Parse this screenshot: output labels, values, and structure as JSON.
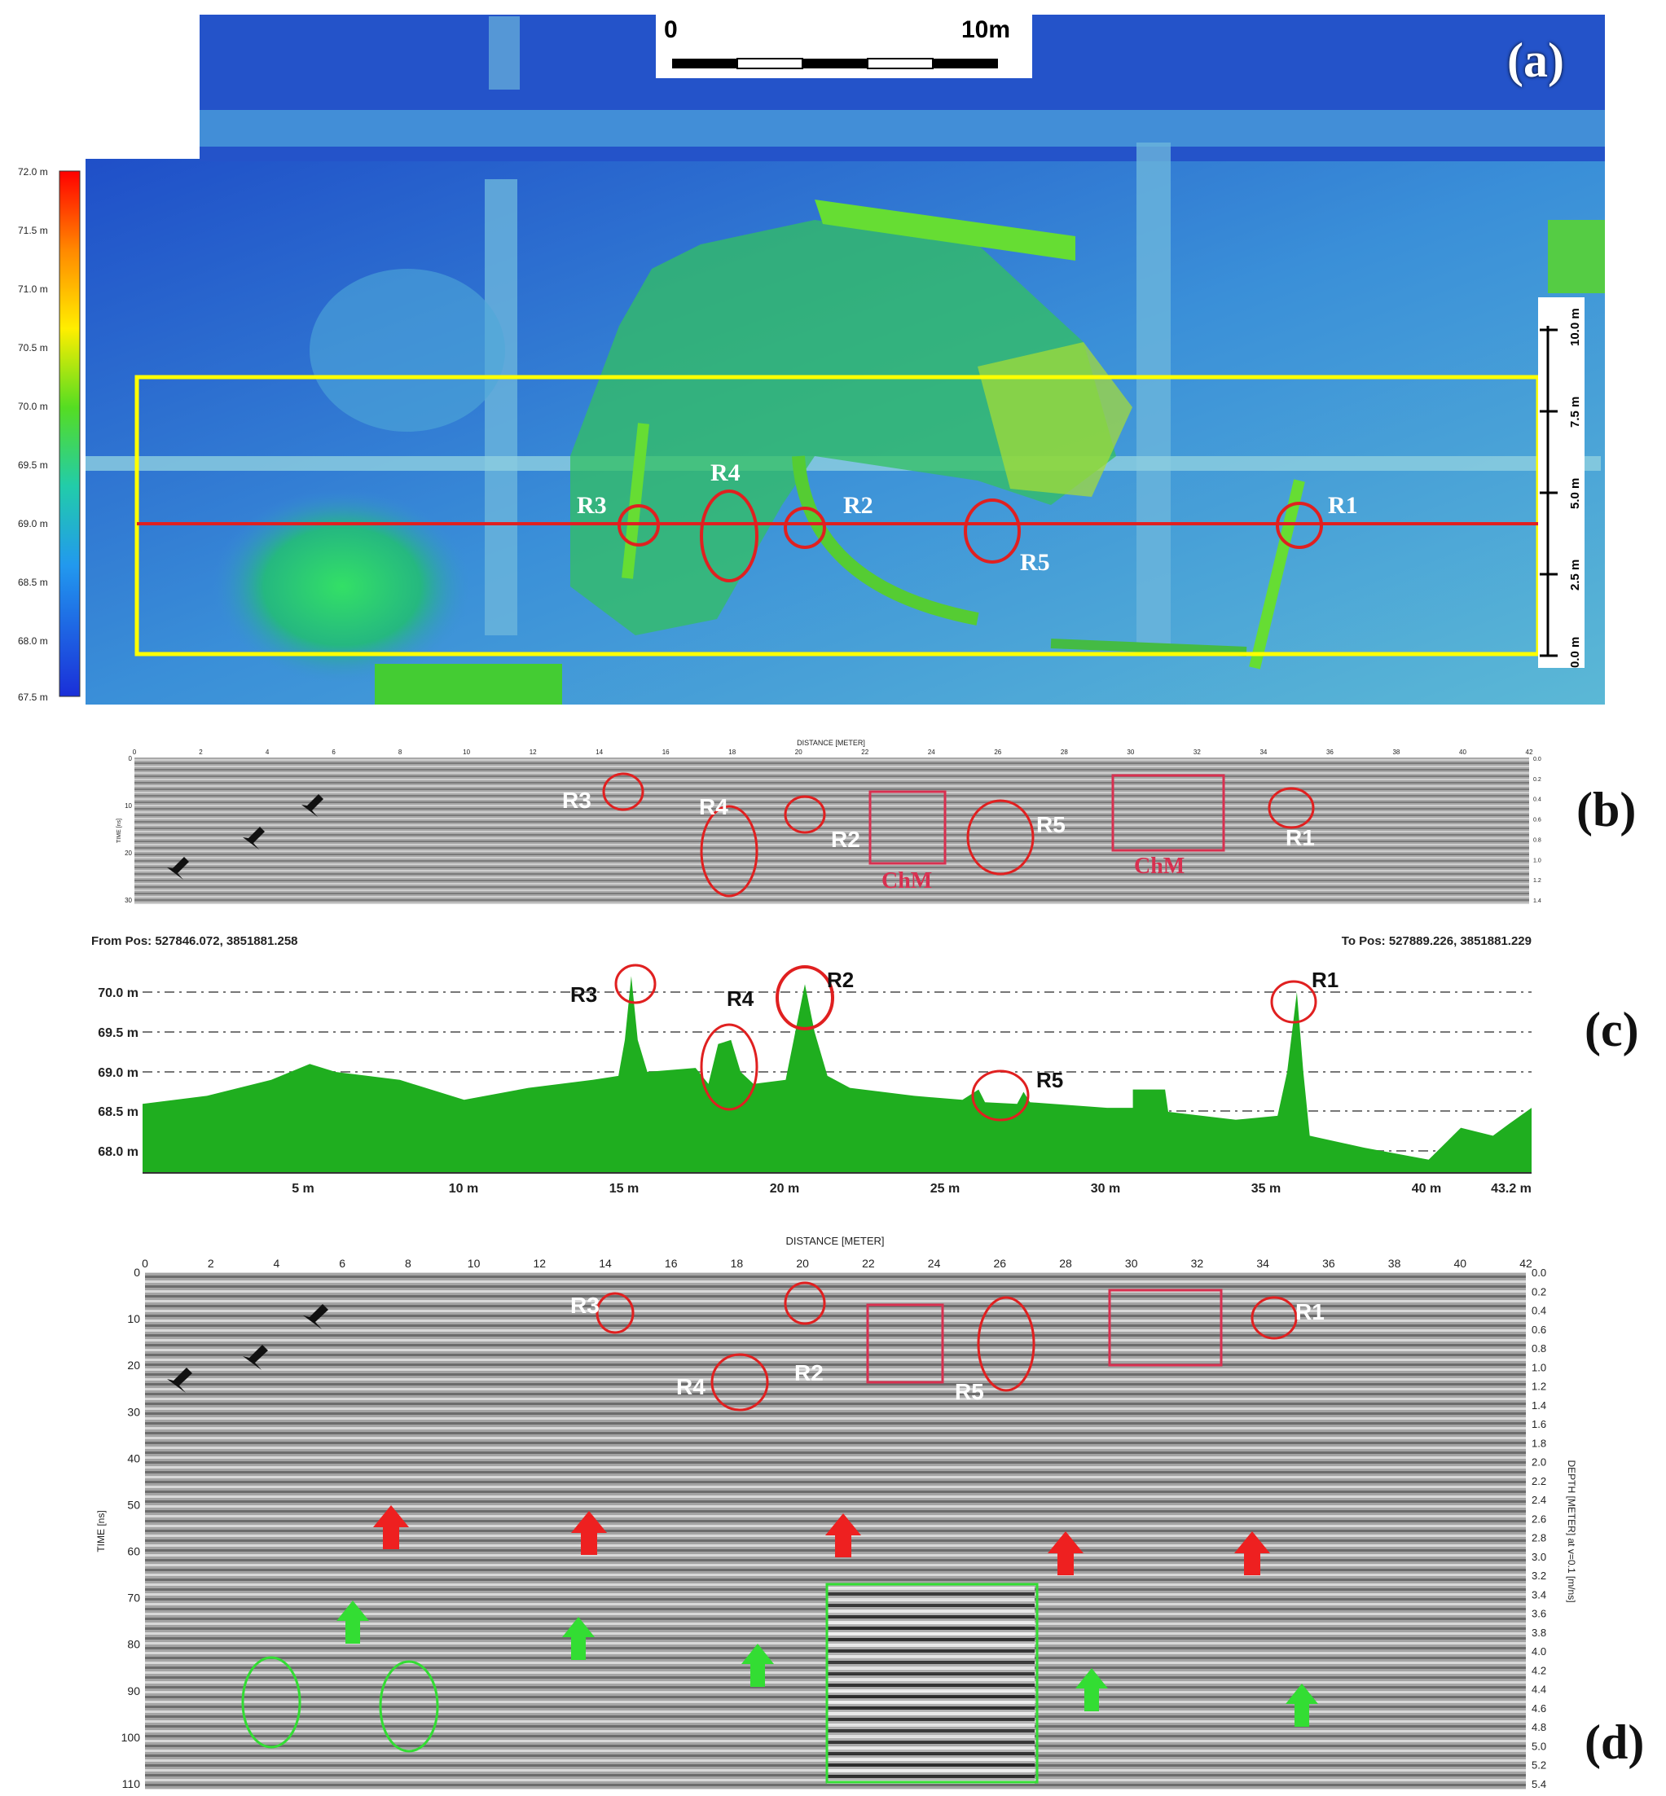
{
  "panel_labels": {
    "a": "(a)",
    "b": "(b)",
    "c": "(c)",
    "d": "(d)"
  },
  "panel_a": {
    "scale_bar": {
      "start": "0",
      "end": "10m"
    },
    "color_legend": [
      "72.0 m",
      "71.5 m",
      "71.0 m",
      "70.5 m",
      "70.0 m",
      "69.5 m",
      "69.0 m",
      "68.5 m",
      "68.0 m",
      "67.5 m"
    ],
    "vertical_scale": [
      "10.0 m",
      "7.5 m",
      "5.0 m",
      "2.5 m",
      "0.0 m"
    ],
    "markers": [
      "R1",
      "R2",
      "R3",
      "R4",
      "R5"
    ]
  },
  "panel_b": {
    "x_title": "DISTANCE [METER]",
    "x_ticks": [
      "0",
      "2",
      "4",
      "6",
      "8",
      "10",
      "12",
      "14",
      "16",
      "18",
      "20",
      "22",
      "24",
      "26",
      "28",
      "30",
      "32",
      "34",
      "36",
      "38",
      "40",
      "42"
    ],
    "y_ticks": [
      "0",
      "10",
      "20",
      "30"
    ],
    "y_title": "TIME [ns]",
    "y2_ticks": [
      "0.0",
      "0.2",
      "0.4",
      "0.6",
      "0.8",
      "1.0",
      "1.2",
      "1.4"
    ],
    "markers": [
      "R1",
      "R2",
      "R3",
      "R4",
      "R5"
    ],
    "chm_label": "ChM"
  },
  "panel_c": {
    "from_pos": "From Pos: 527846.072, 3851881.258",
    "to_pos": "To Pos: 527889.226, 3851881.229",
    "y_labels": [
      "70.0 m",
      "69.5 m",
      "69.0 m",
      "68.5 m",
      "68.0 m"
    ],
    "x_labels": [
      "5 m",
      "10 m",
      "15 m",
      "20 m",
      "25 m",
      "30 m",
      "35 m",
      "40 m",
      "43.2 m"
    ],
    "markers": [
      "R1",
      "R2",
      "R3",
      "R4",
      "R5"
    ],
    "fill_color": "#1fae1f"
  },
  "panel_d": {
    "x_title": "DISTANCE [METER]",
    "x_ticks": [
      "0",
      "2",
      "4",
      "6",
      "8",
      "10",
      "12",
      "14",
      "16",
      "18",
      "20",
      "22",
      "24",
      "26",
      "28",
      "30",
      "32",
      "34",
      "36",
      "38",
      "40",
      "42"
    ],
    "y_title": "TIME [ns]",
    "y_ticks": [
      "0",
      "10",
      "20",
      "30",
      "40",
      "50",
      "60",
      "70",
      "80",
      "90",
      "100",
      "110"
    ],
    "y2_title": "DEPTH [METER] at v=0.1 [m/ns]",
    "y2_ticks": [
      "0.0",
      "0.2",
      "0.4",
      "0.6",
      "0.8",
      "1.0",
      "1.2",
      "1.4",
      "1.6",
      "1.8",
      "2.0",
      "2.2",
      "2.4",
      "2.6",
      "2.8",
      "3.0",
      "3.2",
      "3.4",
      "3.6",
      "3.8",
      "4.0",
      "4.2",
      "4.4",
      "4.6",
      "4.8",
      "5.0",
      "5.2",
      "5.4"
    ],
    "markers": [
      "R1",
      "R2",
      "R3",
      "R4",
      "R5"
    ]
  },
  "colors": {
    "annotation_red": "#e02020",
    "box_red": "#d83050",
    "green_marker": "#33dd33",
    "yellow_box": "#ffff00"
  }
}
